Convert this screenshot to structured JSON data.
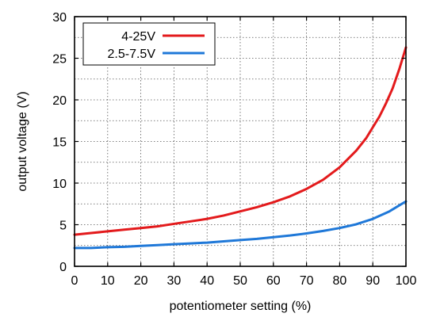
{
  "colors": {
    "series_4_25": "#e31a1c",
    "series_2_5_7_5": "#1f78d8",
    "grid": "#555555",
    "frame": "#000000",
    "background": "#ffffff"
  },
  "chart_data": {
    "type": "line",
    "title": "",
    "xlabel": "potentiometer setting (%)",
    "ylabel": "output voltage (V)",
    "xlim": [
      0,
      100
    ],
    "ylim": [
      0,
      30
    ],
    "xticks": [
      0,
      10,
      20,
      30,
      40,
      50,
      60,
      70,
      80,
      90,
      100
    ],
    "yticks": [
      0,
      5,
      10,
      15,
      20,
      25,
      30
    ],
    "grid": true,
    "grid_style": "dotted",
    "legend_position": "top-left",
    "series": [
      {
        "name": "4-25V",
        "color": "#e31a1c",
        "x": [
          0,
          5,
          10,
          15,
          20,
          25,
          30,
          35,
          40,
          45,
          50,
          55,
          60,
          65,
          70,
          75,
          80,
          85,
          88,
          90,
          92,
          94,
          96,
          98,
          100
        ],
        "y": [
          3.8,
          4.0,
          4.2,
          4.4,
          4.6,
          4.8,
          5.1,
          5.4,
          5.7,
          6.1,
          6.6,
          7.1,
          7.7,
          8.4,
          9.3,
          10.4,
          11.9,
          13.9,
          15.4,
          16.7,
          18.0,
          19.6,
          21.4,
          23.7,
          26.3
        ]
      },
      {
        "name": "2.5-7.5V",
        "color": "#1f78d8",
        "x": [
          0,
          5,
          10,
          15,
          20,
          25,
          30,
          35,
          40,
          45,
          50,
          55,
          60,
          65,
          70,
          75,
          80,
          85,
          90,
          95,
          100
        ],
        "y": [
          2.2,
          2.2,
          2.3,
          2.35,
          2.45,
          2.55,
          2.65,
          2.75,
          2.85,
          3.0,
          3.15,
          3.3,
          3.5,
          3.7,
          3.95,
          4.25,
          4.6,
          5.05,
          5.7,
          6.6,
          7.8
        ]
      }
    ]
  }
}
